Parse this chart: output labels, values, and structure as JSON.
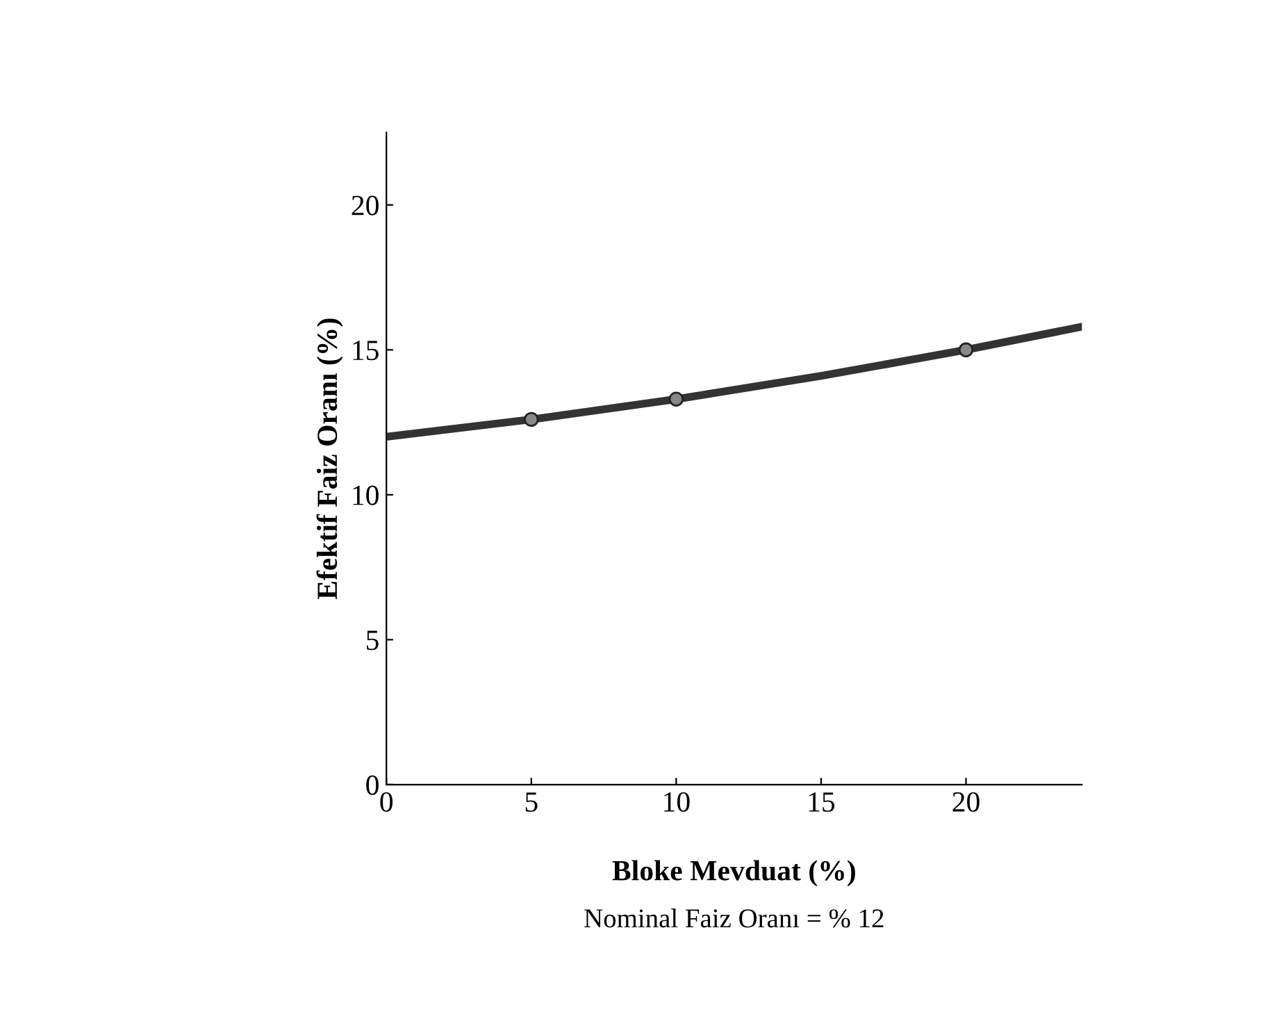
{
  "chart_data": {
    "type": "line",
    "xlabel": "Bloke Mevduat (%)",
    "ylabel": "Efektif Faiz Oranı (%)",
    "xlim": [
      0,
      24
    ],
    "ylim": [
      0,
      22.5
    ],
    "xticks": [
      0,
      5,
      10,
      15,
      20
    ],
    "yticks": [
      0,
      5,
      10,
      15,
      20
    ],
    "grid": false,
    "series": [
      {
        "color": "#333333",
        "x": [
          0,
          5,
          10,
          15,
          20,
          24
        ],
        "values": [
          12,
          12.6,
          13.3,
          14.1,
          15,
          15.8
        ],
        "marker": "none"
      },
      {
        "type": "scatter",
        "color": "#888888",
        "x": [
          5,
          10,
          20
        ],
        "values": [
          12.6,
          13.3,
          15
        ],
        "marker": "circle"
      }
    ],
    "annotations": [
      "Nominal Faiz Oranı = % 12"
    ]
  }
}
